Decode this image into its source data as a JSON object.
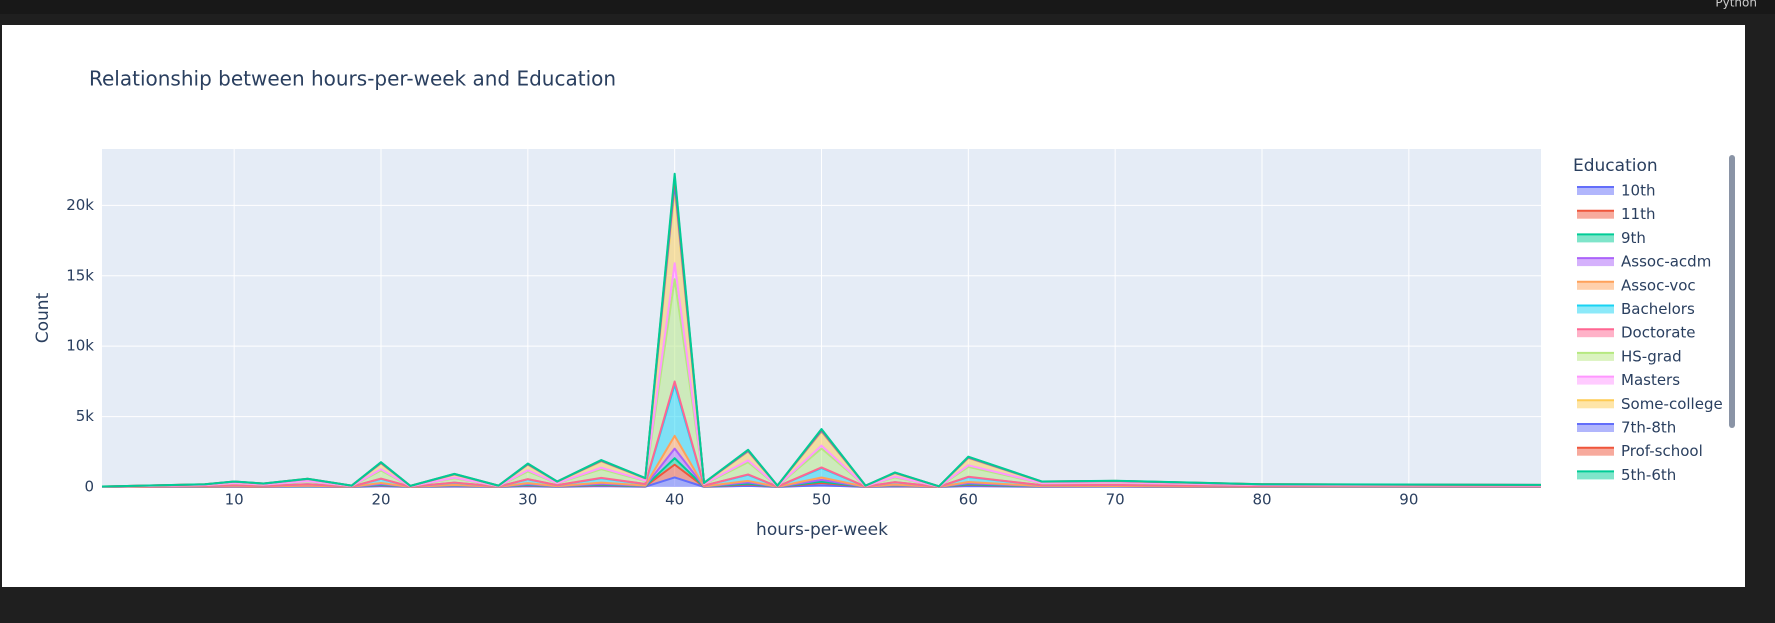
{
  "cell_language": "Python",
  "chart_data": {
    "type": "area",
    "title": "Relationship between hours-per-week and Education",
    "x_label": "hours-per-week",
    "y_label": "Count",
    "legend_title": "Education",
    "legend_position": "right",
    "grid": true,
    "stacked": true,
    "x": [
      1,
      8,
      10,
      12,
      15,
      18,
      20,
      22,
      25,
      28,
      30,
      32,
      35,
      38,
      40,
      42,
      45,
      47,
      50,
      53,
      55,
      58,
      60,
      65,
      70,
      80,
      99
    ],
    "xlim": [
      1,
      99
    ],
    "xticks": [
      10,
      20,
      30,
      40,
      50,
      60,
      70,
      80,
      90
    ],
    "ylim": [
      0,
      24000
    ],
    "yticks": [
      0,
      {
        "value": 5000,
        "label": "5k"
      },
      {
        "value": 10000,
        "label": "10k"
      },
      {
        "value": 15000,
        "label": "15k"
      },
      {
        "value": 20000,
        "label": "20k"
      }
    ],
    "series": [
      {
        "name": "10th",
        "color": "#636efa",
        "values": [
          1,
          6,
          12,
          8,
          18,
          3,
          54,
          2,
          29,
          3,
          51,
          12,
          59,
          20,
          681,
          9,
          81,
          3,
          126,
          3,
          32,
          2,
          66,
          12,
          14,
          6,
          5
        ]
      },
      {
        "name": "11th",
        "color": "#EF553B",
        "values": [
          1,
          8,
          16,
          10,
          24,
          4,
          72,
          3,
          38,
          4,
          68,
          16,
          78,
          26,
          908,
          12,
          108,
          4,
          168,
          4,
          42,
          2,
          88,
          16,
          18,
          8,
          6
        ]
      },
      {
        "name": "9th",
        "color": "#00cc96",
        "values": [
          1,
          4,
          8,
          5,
          12,
          2,
          36,
          2,
          19,
          2,
          34,
          8,
          39,
          13,
          454,
          6,
          54,
          2,
          84,
          2,
          21,
          1,
          44,
          8,
          9,
          4,
          3
        ]
      },
      {
        "name": "Assoc-acdm",
        "color": "#ab63fa",
        "values": [
          1,
          6,
          12,
          8,
          18,
          3,
          54,
          2,
          29,
          3,
          51,
          12,
          59,
          20,
          681,
          9,
          81,
          3,
          126,
          3,
          32,
          2,
          66,
          12,
          14,
          6,
          5
        ]
      },
      {
        "name": "Assoc-voc",
        "color": "#FFA15A",
        "values": [
          1,
          8,
          16,
          10,
          24,
          4,
          72,
          3,
          38,
          4,
          68,
          16,
          78,
          26,
          908,
          12,
          108,
          4,
          168,
          4,
          42,
          2,
          88,
          16,
          18,
          8,
          6
        ]
      },
      {
        "name": "Bachelors",
        "color": "#19d3f3",
        "values": [
          5,
          32,
          64,
          40,
          96,
          16,
          288,
          13,
          152,
          16,
          272,
          64,
          312,
          104,
          3632,
          48,
          432,
          16,
          672,
          16,
          168,
          8,
          352,
          64,
          72,
          32,
          24
        ]
      },
      {
        "name": "Doctorate",
        "color": "#FF6692",
        "values": [
          0,
          2,
          4,
          3,
          6,
          1,
          18,
          1,
          10,
          1,
          17,
          4,
          20,
          7,
          227,
          3,
          27,
          1,
          42,
          1,
          11,
          1,
          22,
          4,
          5,
          2,
          2
        ]
      },
      {
        "name": "HS-grad",
        "color": "#B6E880",
        "values": [
          10,
          64,
          128,
          80,
          192,
          32,
          576,
          26,
          304,
          32,
          544,
          128,
          624,
          208,
          7264,
          96,
          864,
          32,
          1344,
          32,
          336,
          16,
          704,
          128,
          144,
          64,
          48
        ]
      },
      {
        "name": "Masters",
        "color": "#FF97FF",
        "values": [
          2,
          10,
          20,
          13,
          30,
          5,
          90,
          4,
          48,
          5,
          85,
          20,
          98,
          33,
          1135,
          15,
          135,
          5,
          210,
          5,
          53,
          3,
          110,
          20,
          23,
          10,
          8
        ]
      },
      {
        "name": "Some-college",
        "color": "#FECB52",
        "values": [
          7,
          46,
          92,
          58,
          138,
          23,
          414,
          18,
          219,
          23,
          391,
          92,
          449,
          150,
          5221,
          69,
          621,
          23,
          966,
          23,
          242,
          12,
          506,
          92,
          104,
          46,
          35
        ]
      },
      {
        "name": "7th-8th",
        "color": "#636efa",
        "values": [
          1,
          4,
          8,
          5,
          12,
          2,
          36,
          2,
          19,
          2,
          34,
          8,
          39,
          13,
          454,
          6,
          54,
          2,
          84,
          2,
          21,
          1,
          44,
          8,
          9,
          4,
          3
        ]
      },
      {
        "name": "Prof-school",
        "color": "#EF553B",
        "values": [
          1,
          4,
          8,
          5,
          12,
          2,
          36,
          2,
          19,
          2,
          34,
          8,
          39,
          13,
          454,
          6,
          54,
          2,
          84,
          2,
          21,
          1,
          44,
          8,
          9,
          4,
          3
        ]
      },
      {
        "name": "5th-6th",
        "color": "#00cc96",
        "values": [
          0,
          2,
          4,
          3,
          6,
          1,
          18,
          1,
          10,
          1,
          17,
          4,
          20,
          7,
          227,
          3,
          27,
          1,
          42,
          1,
          11,
          1,
          22,
          4,
          5,
          2,
          2
        ]
      }
    ]
  }
}
